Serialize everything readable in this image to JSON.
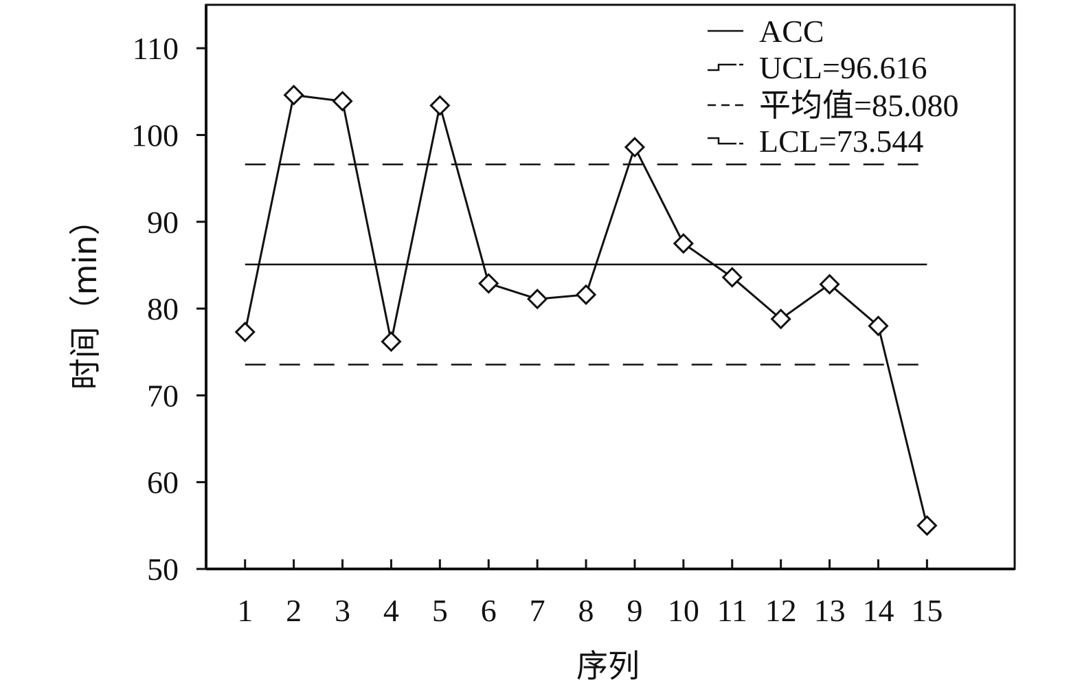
{
  "chart_data": {
    "type": "line",
    "title": "",
    "xlabel": "序列",
    "ylabel": "时间（min）",
    "categories": [
      "1",
      "2",
      "3",
      "4",
      "5",
      "6",
      "7",
      "8",
      "9",
      "10",
      "11",
      "12",
      "13",
      "14",
      "15"
    ],
    "x": [
      1,
      2,
      3,
      4,
      5,
      6,
      7,
      8,
      9,
      10,
      11,
      12,
      13,
      14,
      15
    ],
    "xlim": [
      0.2,
      16.8
    ],
    "ylim": [
      50,
      115
    ],
    "yticks": [
      50,
      60,
      70,
      80,
      90,
      100,
      110
    ],
    "ytick_labels": [
      "50",
      "60",
      "70",
      "80",
      "90",
      "100",
      "110"
    ],
    "grid": false,
    "legend_position": "top-right",
    "series": [
      {
        "name": "ACC",
        "values": [
          77.3,
          104.6,
          103.9,
          76.2,
          103.4,
          82.9,
          81.1,
          81.6,
          98.6,
          87.5,
          83.6,
          78.8,
          82.8,
          78.0,
          55.0
        ],
        "marker": "diamond",
        "style": "solid",
        "color": "#111111"
      }
    ],
    "reference_lines": [
      {
        "label": "UCL=96.616",
        "value": 96.616,
        "style": "dashed"
      },
      {
        "label": "平均值=85.080",
        "value": 85.08,
        "style": "solid"
      },
      {
        "label": "LCL=73.544",
        "value": 73.544,
        "style": "dashed"
      }
    ]
  }
}
